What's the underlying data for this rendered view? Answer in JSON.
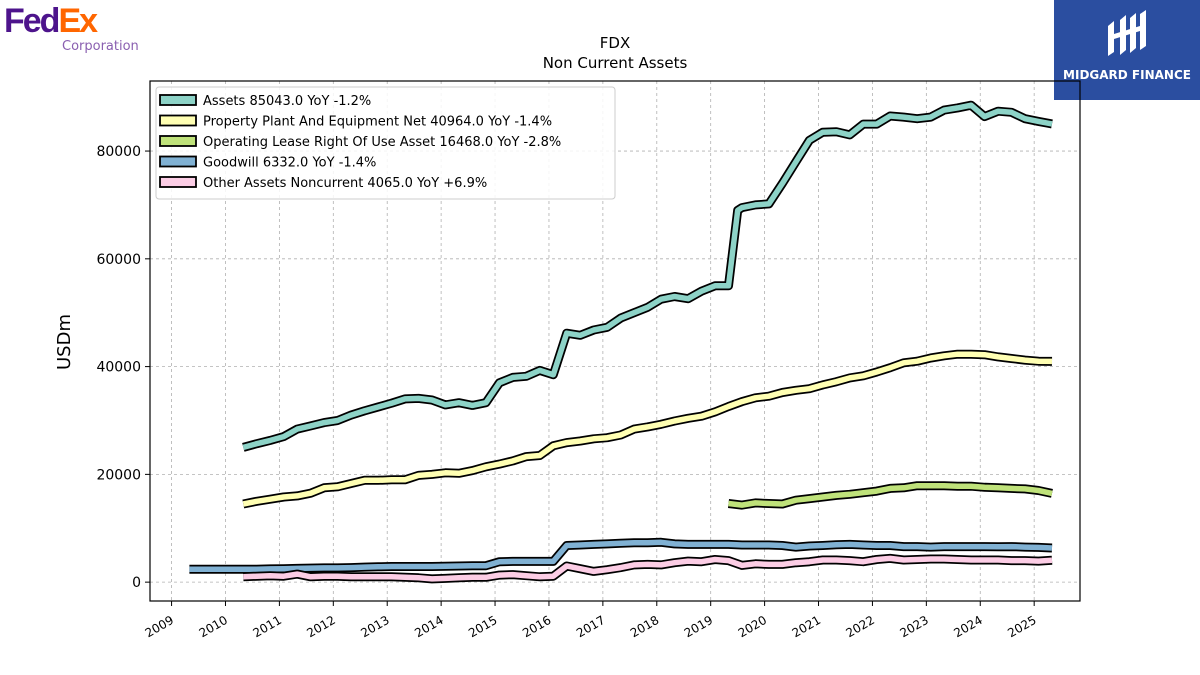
{
  "brand": {
    "left_logo": {
      "part1": "Fed",
      "part2": "Ex",
      "subtitle": "Corporation",
      "color1": "#4d148c",
      "color2": "#ff6600"
    },
    "right_logo": {
      "text": "MIDGARD FINANCE",
      "bg": "#2b4ea0"
    }
  },
  "chart_data": {
    "type": "line",
    "title": "FDX",
    "subtitle": "Non Current  Assets",
    "ylabel": "USDm",
    "xlabel": "",
    "xlim": [
      2008.6,
      2025.85
    ],
    "ylim": [
      -3500,
      93000
    ],
    "x_ticks": [
      2009,
      2010,
      2011,
      2012,
      2013,
      2014,
      2015,
      2016,
      2017,
      2018,
      2019,
      2020,
      2021,
      2022,
      2023,
      2024,
      2025
    ],
    "x_tick_labels": [
      "2009",
      "2010",
      "2011",
      "2012",
      "2013",
      "2014",
      "2015",
      "2016",
      "2017",
      "2018",
      "2019",
      "2020",
      "2021",
      "2022",
      "2023",
      "2024",
      "2025"
    ],
    "y_ticks": [
      0,
      20000,
      40000,
      60000,
      80000
    ],
    "y_tick_labels": [
      "0",
      "20000",
      "40000",
      "60000",
      "80000"
    ],
    "grid": true,
    "legend_position": "top-left",
    "series": [
      {
        "name": "Assets  85043.0 YoY -1.2%",
        "color": "#8dd3c7",
        "x": [
          2010.33,
          2010.58,
          2010.83,
          2011.08,
          2011.33,
          2011.58,
          2011.83,
          2012.08,
          2012.33,
          2012.58,
          2012.83,
          2013.08,
          2013.33,
          2013.58,
          2013.83,
          2014.08,
          2014.33,
          2014.58,
          2014.83,
          2015.08,
          2015.33,
          2015.58,
          2015.83,
          2016.08,
          2016.33,
          2016.58,
          2016.83,
          2017.08,
          2017.33,
          2017.58,
          2017.83,
          2018.08,
          2018.33,
          2018.58,
          2018.83,
          2019.08,
          2019.33,
          2019.5,
          2019.58,
          2019.83,
          2020.08,
          2020.33,
          2020.58,
          2020.83,
          2021.08,
          2021.33,
          2021.58,
          2021.83,
          2022.08,
          2022.33,
          2022.58,
          2022.83,
          2023.08,
          2023.33,
          2023.58,
          2023.83,
          2024.08,
          2024.33,
          2024.58,
          2024.83,
          2025.08,
          2025.33
        ],
        "y": [
          25000,
          25700,
          26300,
          27000,
          28400,
          29000,
          29600,
          30000,
          31000,
          31800,
          32500,
          33200,
          34000,
          34100,
          33800,
          32900,
          33300,
          32800,
          33300,
          37000,
          38000,
          38200,
          39300,
          38500,
          46200,
          45800,
          46800,
          47300,
          49000,
          50000,
          51000,
          52500,
          53000,
          52600,
          54000,
          55000,
          55000,
          69000,
          69500,
          70000,
          70200,
          74000,
          78000,
          82000,
          83500,
          83600,
          83000,
          85000,
          85000,
          86500,
          86300,
          86000,
          86300,
          87600,
          88000,
          88500,
          86400,
          87400,
          87200,
          86000,
          85500,
          85043
        ]
      },
      {
        "name": "Property Plant And Equipment Net  40964.0 YoY -1.4%",
        "color": "#ffffb3",
        "x": [
          2010.33,
          2010.58,
          2010.83,
          2011.08,
          2011.33,
          2011.58,
          2011.83,
          2012.08,
          2012.33,
          2012.58,
          2012.83,
          2013.08,
          2013.33,
          2013.58,
          2013.83,
          2014.08,
          2014.33,
          2014.58,
          2014.83,
          2015.08,
          2015.33,
          2015.58,
          2015.83,
          2016.08,
          2016.33,
          2016.58,
          2016.83,
          2017.08,
          2017.33,
          2017.58,
          2017.83,
          2018.08,
          2018.33,
          2018.58,
          2018.83,
          2019.08,
          2019.33,
          2019.58,
          2019.83,
          2020.08,
          2020.33,
          2020.58,
          2020.83,
          2021.08,
          2021.33,
          2021.58,
          2021.83,
          2022.08,
          2022.33,
          2022.58,
          2022.83,
          2023.08,
          2023.33,
          2023.58,
          2023.83,
          2024.08,
          2024.33,
          2024.58,
          2024.83,
          2025.08,
          2025.33
        ],
        "y": [
          14500,
          15000,
          15400,
          15800,
          16000,
          16500,
          17500,
          17700,
          18300,
          18900,
          18900,
          19000,
          19000,
          19800,
          20000,
          20300,
          20200,
          20700,
          21400,
          21900,
          22500,
          23300,
          23500,
          25300,
          25900,
          26200,
          26600,
          26800,
          27300,
          28400,
          28800,
          29300,
          29900,
          30400,
          30800,
          31600,
          32600,
          33500,
          34200,
          34500,
          35200,
          35600,
          35900,
          36600,
          37200,
          37900,
          38300,
          39000,
          39800,
          40700,
          41000,
          41600,
          42000,
          42300,
          42300,
          42200,
          41800,
          41500,
          41200,
          41000,
          40964
        ]
      },
      {
        "name": "Operating Lease Right Of Use Asset  16468.0 YoY -2.8%",
        "color": "#bfe27a",
        "x": [
          2019.33,
          2019.58,
          2019.83,
          2020.08,
          2020.33,
          2020.58,
          2020.83,
          2021.08,
          2021.33,
          2021.58,
          2021.83,
          2022.08,
          2022.33,
          2022.58,
          2022.83,
          2023.08,
          2023.33,
          2023.58,
          2023.83,
          2024.08,
          2024.33,
          2024.58,
          2024.83,
          2025.08,
          2025.33
        ],
        "y": [
          14600,
          14300,
          14700,
          14600,
          14500,
          15200,
          15500,
          15800,
          16100,
          16300,
          16600,
          16900,
          17400,
          17500,
          17900,
          17900,
          17900,
          17800,
          17800,
          17600,
          17500,
          17400,
          17300,
          17000,
          16468
        ]
      },
      {
        "name": "Goodwill  6332.0 YoY -1.4%",
        "color": "#80b1d3",
        "x": [
          2009.33,
          2009.58,
          2009.83,
          2010.08,
          2010.33,
          2010.58,
          2010.83,
          2011.08,
          2011.33,
          2011.58,
          2011.83,
          2012.08,
          2012.33,
          2012.58,
          2012.83,
          2013.08,
          2013.33,
          2013.58,
          2013.83,
          2014.08,
          2014.33,
          2014.58,
          2014.83,
          2015.08,
          2015.33,
          2015.58,
          2015.83,
          2016.08,
          2016.33,
          2016.58,
          2016.83,
          2017.08,
          2017.33,
          2017.58,
          2017.83,
          2018.08,
          2018.33,
          2018.58,
          2018.83,
          2019.08,
          2019.33,
          2019.58,
          2019.83,
          2020.08,
          2020.33,
          2020.58,
          2020.83,
          2021.08,
          2021.33,
          2021.58,
          2021.83,
          2022.08,
          2022.33,
          2022.58,
          2022.83,
          2023.08,
          2023.33,
          2023.58,
          2023.83,
          2024.08,
          2024.33,
          2024.58,
          2024.83,
          2025.08,
          2025.33
        ],
        "y": [
          2400,
          2400,
          2400,
          2400,
          2400,
          2400,
          2450,
          2500,
          2550,
          2600,
          2650,
          2650,
          2700,
          2800,
          2850,
          2900,
          2900,
          2900,
          2900,
          2950,
          3000,
          3050,
          3050,
          3800,
          3850,
          3850,
          3850,
          3850,
          6800,
          6900,
          7000,
          7100,
          7200,
          7300,
          7300,
          7400,
          7100,
          7000,
          7000,
          7000,
          7000,
          6900,
          6900,
          6900,
          6800,
          6500,
          6700,
          6800,
          6950,
          7000,
          6900,
          6800,
          6800,
          6600,
          6600,
          6500,
          6600,
          6600,
          6600,
          6600,
          6550,
          6600,
          6500,
          6450,
          6332
        ]
      },
      {
        "name": "Other Assets Noncurrent  4065.0 YoY +6.9%",
        "color": "#fccde5",
        "x": [
          2010.33,
          2010.58,
          2010.83,
          2011.08,
          2011.33,
          2011.58,
          2011.83,
          2012.08,
          2012.33,
          2012.58,
          2012.83,
          2013.08,
          2013.33,
          2013.58,
          2013.83,
          2014.08,
          2014.33,
          2014.58,
          2014.83,
          2015.08,
          2015.33,
          2015.58,
          2015.83,
          2016.08,
          2016.33,
          2016.58,
          2016.83,
          2017.08,
          2017.33,
          2017.58,
          2017.83,
          2018.08,
          2018.33,
          2018.58,
          2018.83,
          2019.08,
          2019.33,
          2019.58,
          2019.83,
          2020.08,
          2020.33,
          2020.58,
          2020.83,
          2021.08,
          2021.33,
          2021.58,
          2021.83,
          2022.08,
          2022.33,
          2022.58,
          2022.83,
          2023.08,
          2023.33,
          2023.58,
          2023.83,
          2024.08,
          2024.33,
          2024.58,
          2024.83,
          2025.08,
          2025.33
        ],
        "y": [
          1000,
          1100,
          1200,
          1100,
          1500,
          1000,
          1100,
          1100,
          1000,
          1000,
          1000,
          1000,
          900,
          800,
          600,
          700,
          800,
          900,
          900,
          1300,
          1400,
          1200,
          1000,
          1100,
          3000,
          2500,
          2000,
          2300,
          2700,
          3200,
          3300,
          3200,
          3600,
          3900,
          3800,
          4200,
          4000,
          3100,
          3400,
          3300,
          3300,
          3600,
          3800,
          4100,
          4100,
          4000,
          3800,
          4200,
          4400,
          4100,
          4200,
          4300,
          4300,
          4200,
          4100,
          4100,
          4100,
          4000,
          4000,
          3900,
          4065
        ]
      }
    ]
  }
}
